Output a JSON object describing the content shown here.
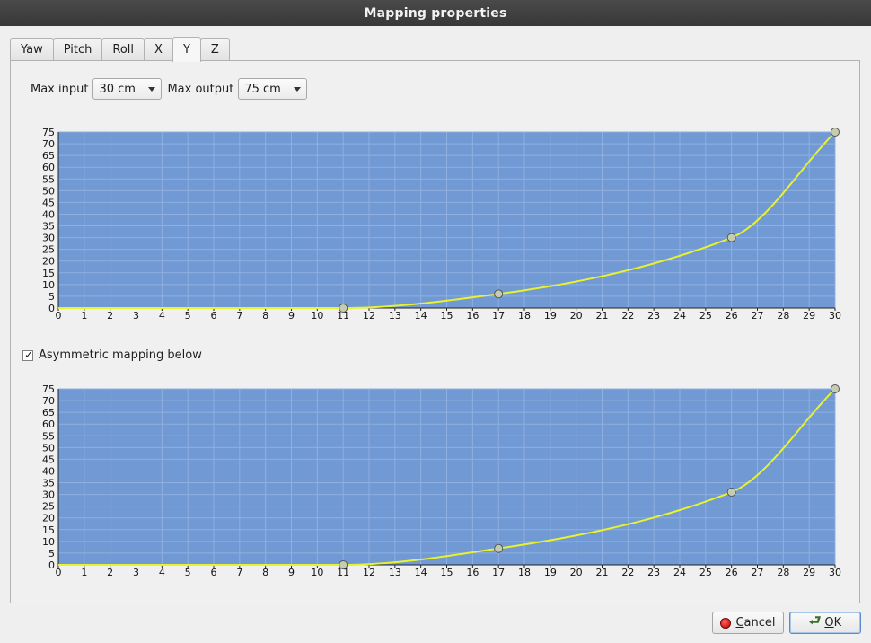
{
  "window": {
    "title": "Mapping properties"
  },
  "tabs": [
    {
      "label": "Yaw"
    },
    {
      "label": "Pitch"
    },
    {
      "label": "Roll"
    },
    {
      "label": "X"
    },
    {
      "label": "Y",
      "active": true
    },
    {
      "label": "Z"
    }
  ],
  "controls": {
    "max_input_label": "Max input",
    "max_input_value": "30 cm",
    "max_output_label": "Max output",
    "max_output_value": "75 cm",
    "asymmetric_label": "Asymmetric mapping below",
    "asymmetric_checked": true,
    "checkmark": "✓"
  },
  "buttons": {
    "cancel_rest": "ancel",
    "cancel_mnemonic": "C",
    "ok_rest": "K",
    "ok_mnemonic": "O"
  },
  "colors": {
    "plot_bg": "#7199d4",
    "curve": "#e8f22e",
    "grid": "#8fb0e0",
    "point": "#c5cdb0"
  },
  "chart_data": [
    {
      "type": "line",
      "xlim": [
        0,
        30
      ],
      "ylim": [
        0,
        75
      ],
      "x_ticks": [
        0,
        1,
        2,
        3,
        4,
        5,
        6,
        7,
        8,
        9,
        10,
        11,
        12,
        13,
        14,
        15,
        16,
        17,
        18,
        19,
        20,
        21,
        22,
        23,
        24,
        25,
        26,
        27,
        28,
        29,
        30
      ],
      "y_ticks": [
        0,
        5,
        10,
        15,
        20,
        25,
        30,
        35,
        40,
        45,
        50,
        55,
        60,
        65,
        70,
        75
      ],
      "grid": true,
      "points": [
        {
          "x": 11,
          "y": 0
        },
        {
          "x": 17,
          "y": 6
        },
        {
          "x": 26,
          "y": 30
        },
        {
          "x": 30,
          "y": 75
        }
      ]
    },
    {
      "type": "line",
      "xlim": [
        0,
        30
      ],
      "ylim": [
        0,
        75
      ],
      "x_ticks": [
        0,
        1,
        2,
        3,
        4,
        5,
        6,
        7,
        8,
        9,
        10,
        11,
        12,
        13,
        14,
        15,
        16,
        17,
        18,
        19,
        20,
        21,
        22,
        23,
        24,
        25,
        26,
        27,
        28,
        29,
        30
      ],
      "y_ticks": [
        0,
        5,
        10,
        15,
        20,
        25,
        30,
        35,
        40,
        45,
        50,
        55,
        60,
        65,
        70,
        75
      ],
      "grid": true,
      "points": [
        {
          "x": 11,
          "y": 0
        },
        {
          "x": 17,
          "y": 7
        },
        {
          "x": 26,
          "y": 31
        },
        {
          "x": 30,
          "y": 75
        }
      ]
    }
  ]
}
